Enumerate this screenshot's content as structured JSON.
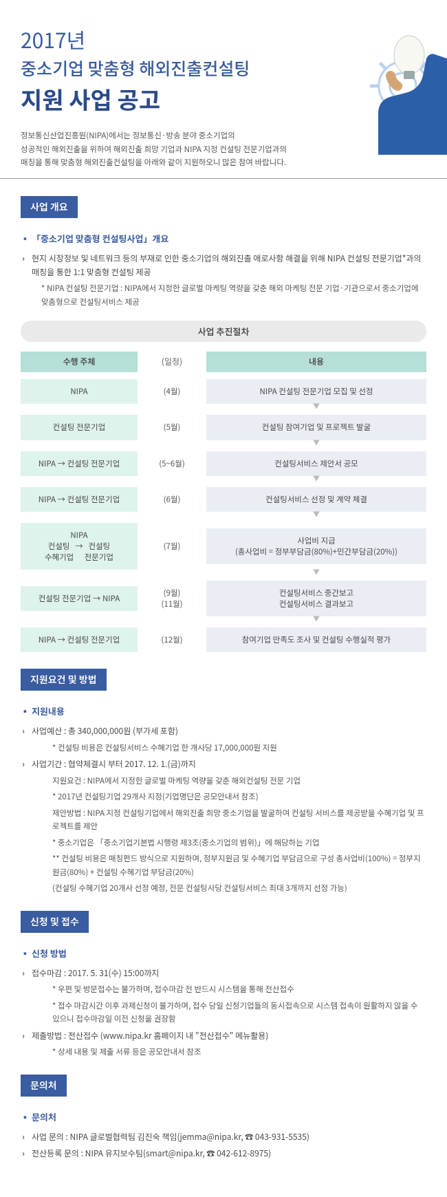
{
  "header": {
    "year": "2017년",
    "subtitle": "중소기업 맞춤형 해외진출컨설팅",
    "maintitle": "지원 사업 공고",
    "intro": "정보통신산업진흥원(NIPA)에서는 정보통신·방송 분야 중소기업의\n성공적인 해외진출을 위하여 해외진출 희망 기업과 NIPA 지정 컨설팅 전문기업과의\n매칭을 통해 맞춤형 해외진출컨설팅을 아래와 같이 지원하오니 많은 참여 바랍니다."
  },
  "overview": {
    "section_title": "사업 개요",
    "sub_title": "「중소기업 맞춤형 컨설팅사업」개요",
    "bullets": [
      "현지 시장정보 및 네트워크 등의 부재로 인한 중소기업의 해외진출 애로사항 해결을 위해 NIPA 컨설팅 전문기업*과의 매칭을 통한 1:1 맞춤형 컨설팅 제공"
    ],
    "notes": [
      "* NIPA 컨설팅 전문기업 : NIPA에서 지정한 글로벌 마케팅 역량을 갖춘 해외 마케팅 전문 기업·기관으로서 중소기업에 맞춤형으로 컨설팅서비스 제공"
    ]
  },
  "process": {
    "title": "사업 추진절차",
    "head_left": "수행 주체",
    "head_mid": "(일정)",
    "head_right": "내용",
    "rows": [
      {
        "left": "NIPA",
        "mid": "(4월)",
        "right": "NIPA 컨설팅 전문기업 모집 및 선정"
      },
      {
        "left": "컨설팅 전문기업",
        "mid": "(5월)",
        "right": "컨설팅 참여기업 및 프로젝트 발굴"
      },
      {
        "left": "NIPA → 컨설팅 전문기업",
        "mid": "(5~6월)",
        "right": "컨설팅서비스 제안서 공모"
      },
      {
        "left": "NIPA → 컨설팅 전문기업",
        "mid": "(6월)",
        "right": "컨설팅서비스 선정 및 계약 체결"
      },
      {
        "left": "NIPA\n컨설팅   →   컨설팅\n수혜기업      전문기업",
        "mid": "(7월)",
        "right": "사업비 지급\n(총사업비 = 정부부담금(80%)+민간부담금(20%))"
      },
      {
        "left": "컨설팅 전문기업 → NIPA",
        "mid": "(9월)\n(11월)",
        "right": "컨설팅서비스 중간보고\n컨설팅서비스 결과보고"
      },
      {
        "left": "NIPA → 컨설팅 전문기업",
        "mid": "(12월)",
        "right": "참여기업 만족도 조사 및 컨설팅 수행실적 평가"
      }
    ]
  },
  "support": {
    "section_title": "지원요건 및 방법",
    "sub_title": "지원내용",
    "items": [
      {
        "main": "사업예산 : 총 340,000,000원 (부가세 포함)",
        "subs": [
          "* 컨설팅 비용은 컨설팅서비스 수혜기업 한 개사당 17,000,000원 지원"
        ]
      },
      {
        "main": "사업기간 : 협약체결시 부터 2017. 12. 1.(금)까지",
        "subs": [
          "지원요건 : NIPA에서 지정한 글로벌 마케팅 역량을 갖춘 해외컨설팅 전문 기업",
          "* 2017년 컨설팅기업 29개사 지정(기업명단은 공모안내서 참조)",
          "제안방법 : NIPA 지정 컨설팅기업에서 해외진출 희망 중소기업을 발굴하여 컨설팅 서비스를 제공받을 수혜기업 및 프로젝트를 제안",
          "* 중소기업은 「중소기업기본법 시행령 제3조(중소기업의 범위)」에 해당하는 기업",
          "** 컨설팅 비용은 매칭펀드 방식으로 지원하며, 정부지원금 및 수혜기업 부담금으로 구성 총사업비(100%) = 정부지원금(80%) + 컨설팅 수혜기업 부담금(20%)",
          "(컨설팅 수혜기업 20개사 선정 예정, 전문 컨설팅사당 컨설팅서비스 최대 3개까지 선정 가능)"
        ]
      }
    ]
  },
  "apply": {
    "section_title": "신청 및 접수",
    "sub_title": "신청 방법",
    "items": [
      {
        "main": "접수마감 : 2017. 5. 31(수) 15:00까지",
        "subs": [
          "* 우편 및 방문접수는 불가하며, 접수마감 전 반드시 시스템을 통해 전산접수",
          "* 접수 마감시간 이후 과제신청이 불가하며, 접수 당일 신청기업들의 동시접속으로 시스템 접속이 원활하지 않을 수 있으니 접수마감일 이전 신청을 권장함"
        ]
      },
      {
        "main": "제출방법 : 전산접수 (www.nipa.kr 홈페이지 내 \"전산접수\" 메뉴활용)",
        "subs": [
          "* 상세 내용 및 제출 서류 등은 공모안내서 참조"
        ]
      }
    ]
  },
  "contact": {
    "section_title": "문의처",
    "sub_title": "문의처",
    "items": [
      "사업 문의 : NIPA 글로벌협력팀 김진숙 책임(jemma@nipa.kr, ☎ 043-931-5535)",
      "전산등록 문의 : NIPA 유지보수팀(smart@nipa.kr, ☎ 042-612-8975)"
    ]
  },
  "colors": {
    "primary": "#3a5ca0",
    "left_cell": "#dff3ed",
    "right_cell": "#eaeef4",
    "head_cell": "#b6dfd7"
  }
}
